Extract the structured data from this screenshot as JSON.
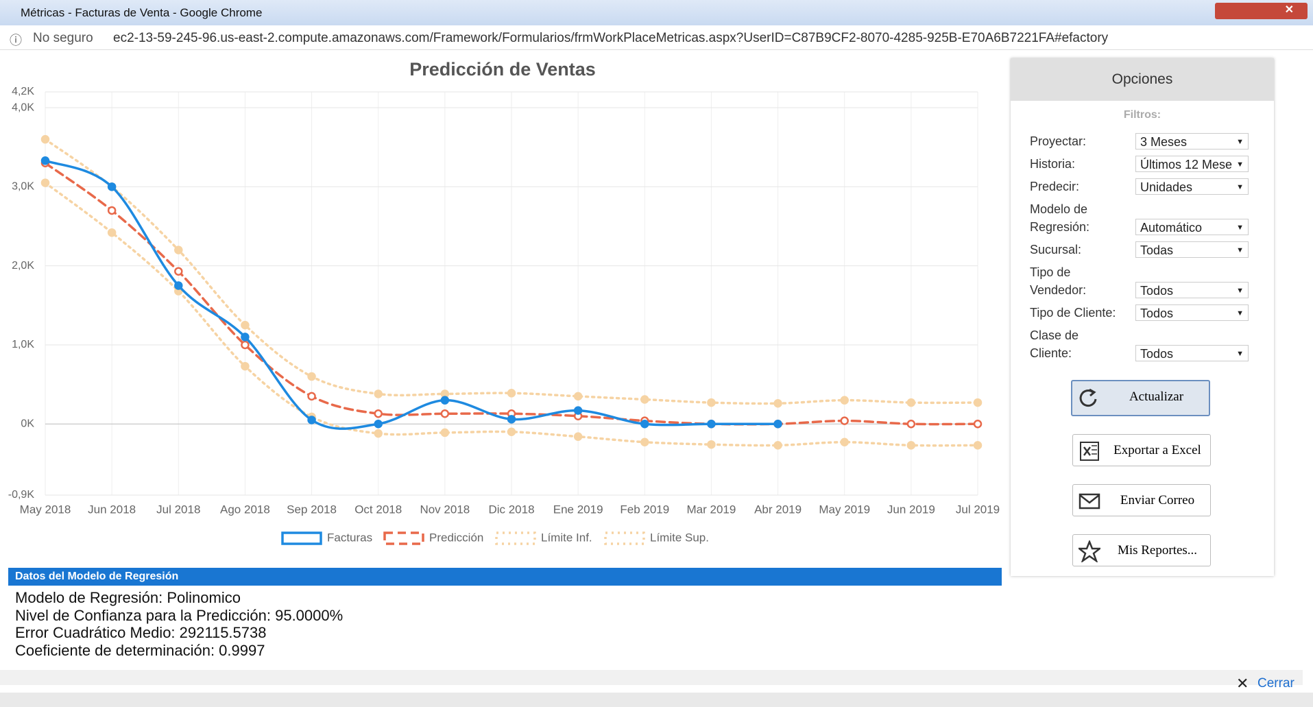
{
  "window": {
    "title": "Métricas - Facturas de Venta - Google Chrome",
    "security": "No seguro",
    "url": "ec2-13-59-245-96.us-east-2.compute.amazonaws.com/Framework/Formularios/frmWorkPlaceMetricas.aspx?UserID=C87B9CF2-8070-4285-925B-E70A6B7221FA#efactory"
  },
  "chart_data": {
    "type": "line",
    "title": "Predicción de Ventas",
    "categories": [
      "May 2018",
      "Jun 2018",
      "Jul 2018",
      "Ago 2018",
      "Sep 2018",
      "Oct 2018",
      "Nov 2018",
      "Dic 2018",
      "Ene 2019",
      "Feb 2019",
      "Mar 2019",
      "Abr 2019",
      "May 2019",
      "Jun 2019",
      "Jul 2019"
    ],
    "ylim": [
      -900,
      4200
    ],
    "yticks": [
      {
        "value": -900,
        "label": "-0,9K"
      },
      {
        "value": 0,
        "label": "0K"
      },
      {
        "value": 1000,
        "label": "1,0K"
      },
      {
        "value": 2000,
        "label": "2,0K"
      },
      {
        "value": 3000,
        "label": "3,0K"
      },
      {
        "value": 4000,
        "label": "4,0K"
      },
      {
        "value": 4200,
        "label": "4,2K"
      }
    ],
    "grid": true,
    "legend": "bottom",
    "series": [
      {
        "name": "Facturas",
        "color": "#1e8ae0",
        "values": [
          3330,
          3000,
          1750,
          1100,
          50,
          0,
          300,
          60,
          170,
          0,
          0,
          0,
          null,
          null,
          null
        ]
      },
      {
        "name": "Predicción",
        "color": "#e8694a",
        "values": [
          3300,
          2700,
          1930,
          1000,
          350,
          130,
          130,
          130,
          100,
          40,
          0,
          0,
          40,
          0,
          0
        ]
      },
      {
        "name": "Límite Inf.",
        "color": "#f6d3a3",
        "values": [
          3050,
          2420,
          1680,
          730,
          90,
          -120,
          -110,
          -100,
          -160,
          -230,
          -260,
          -270,
          -230,
          -270,
          -270
        ]
      },
      {
        "name": "Límite Sup.",
        "color": "#f6d3a3",
        "values": [
          3600,
          3000,
          2200,
          1250,
          600,
          380,
          380,
          390,
          350,
          310,
          270,
          260,
          300,
          270,
          270
        ]
      }
    ]
  },
  "options": {
    "title": "Opciones",
    "subtitle": "Filtros:",
    "fields": [
      {
        "label": [
          "Proyectar:"
        ],
        "value": "3 Meses"
      },
      {
        "label": [
          "Historia:"
        ],
        "value": "Últimos 12 Mese"
      },
      {
        "label": [
          "Predecir:"
        ],
        "value": "Unidades"
      },
      {
        "label": [
          "Modelo de",
          "Regresión:"
        ],
        "value": "Automático"
      },
      {
        "label": [
          "Sucursal:"
        ],
        "value": "Todas"
      },
      {
        "label": [
          "Tipo de",
          "Vendedor:"
        ],
        "value": "Todos"
      },
      {
        "label": [
          "Tipo de Cliente:"
        ],
        "value": "Todos"
      },
      {
        "label": [
          "Clase de",
          "Cliente:"
        ],
        "value": "Todos"
      }
    ],
    "buttons": [
      "Actualizar",
      "Exportar a Excel",
      "Enviar Correo",
      "Mis Reportes..."
    ]
  },
  "regression": {
    "heading": "Datos del Modelo de Regresión",
    "lines": [
      "Modelo de Regresión: Polinomico",
      "Nivel de Confianza para la Predicción: 95.0000%",
      "Error Cuadrático Medio: 292115.5738",
      "Coeficiente de determinación: 0.9997"
    ]
  },
  "close": "Cerrar"
}
